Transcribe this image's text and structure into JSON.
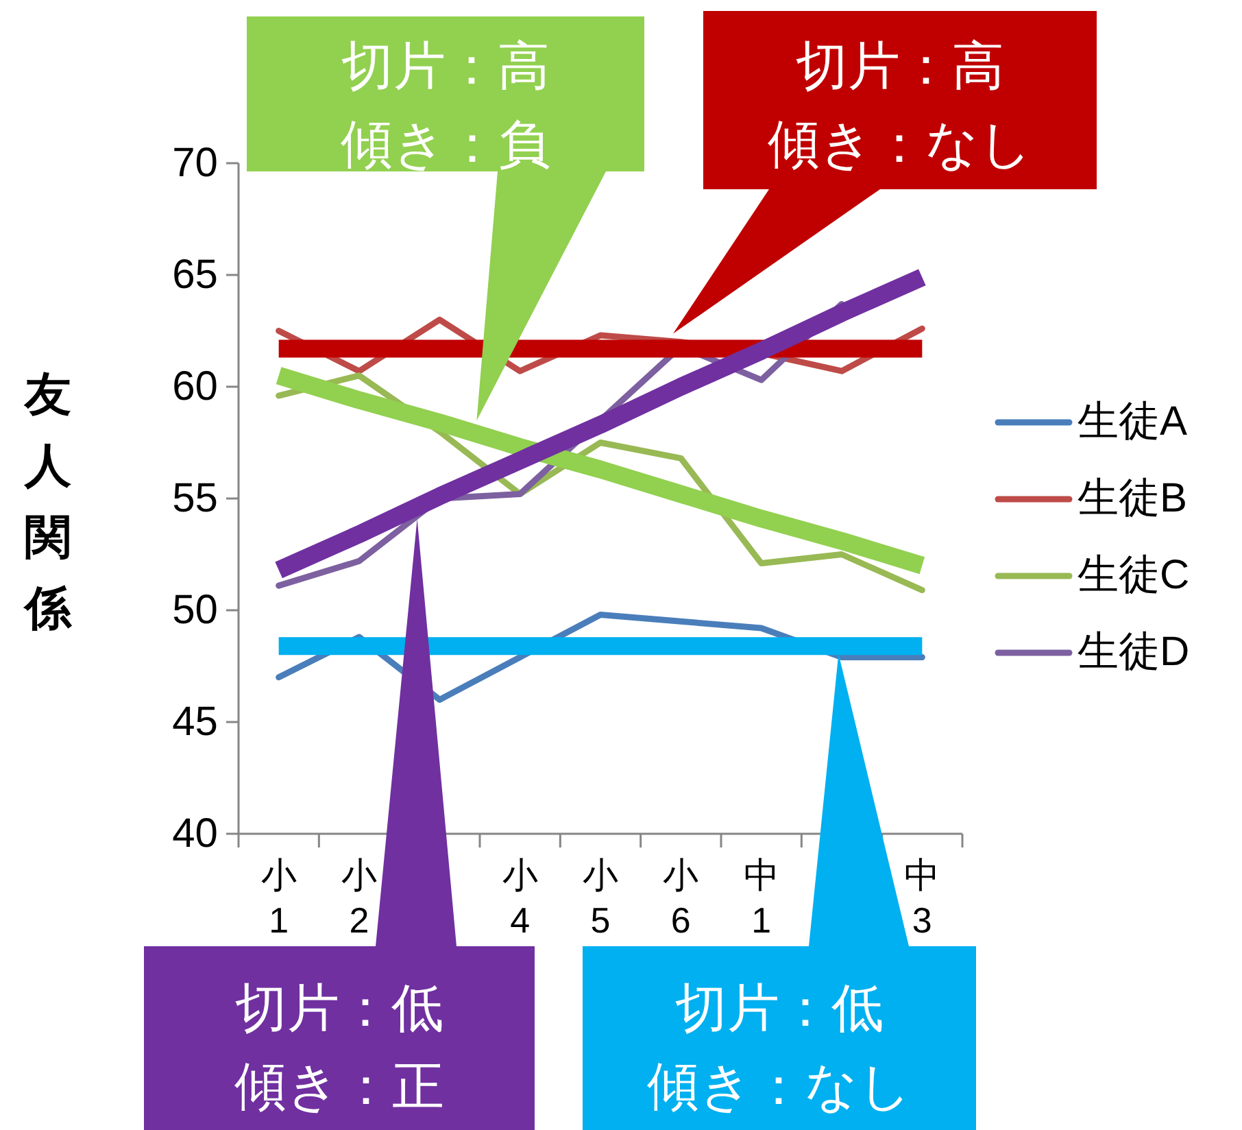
{
  "chart_data": {
    "type": "line",
    "ylabel": "友人関係",
    "categories": [
      "小1",
      "小2",
      null,
      "小4",
      "小5",
      "小6",
      "中1",
      null,
      "中3"
    ],
    "series": [
      {
        "name": "生徒A",
        "color": "#4a7ebb",
        "values": [
          47.0,
          48.8,
          46.0,
          47.9,
          49.8,
          49.5,
          49.2,
          47.9,
          47.9
        ]
      },
      {
        "name": "生徒B",
        "color": "#be4b48",
        "values": [
          62.5,
          60.7,
          63.0,
          60.7,
          62.3,
          62.0,
          61.5,
          60.7,
          62.6
        ]
      },
      {
        "name": "生徒C",
        "color": "#98b954",
        "values": [
          59.6,
          60.5,
          58.0,
          55.2,
          57.5,
          56.8,
          52.1,
          52.5,
          50.9
        ]
      },
      {
        "name": "生徒D",
        "color": "#7d60a0",
        "values": [
          51.1,
          52.2,
          55.0,
          55.2,
          58.5,
          61.8,
          60.3,
          63.7,
          null
        ]
      },
      {
        "color": "#92d050",
        "values": [
          60.5,
          59.4,
          58.4,
          57.3,
          56.3,
          55.2,
          54.1,
          53.1,
          52.0
        ]
      },
      {
        "color": "#c00000",
        "values": [
          61.7,
          61.7,
          61.7,
          61.7,
          61.7,
          61.7,
          61.7,
          61.7,
          61.7
        ]
      },
      {
        "color": "#7030a0",
        "values": [
          51.8,
          53.4,
          55.1,
          56.7,
          58.3,
          60.0,
          61.6,
          63.3,
          64.9
        ]
      },
      {
        "color": "#00b0f0",
        "values": [
          48.4,
          48.4,
          48.4,
          48.4,
          48.4,
          48.4,
          48.4,
          48.4,
          48.4
        ]
      }
    ],
    "ylim": [
      40,
      70
    ],
    "yticks": [
      40,
      45,
      50,
      55,
      60,
      65,
      70
    ],
    "legend": "right",
    "grid": false,
    "annotations": [
      "切片：高傾き：負",
      "切片：高傾き：なし",
      "切片：低傾き：正",
      "切片：低傾き：なし"
    ]
  }
}
